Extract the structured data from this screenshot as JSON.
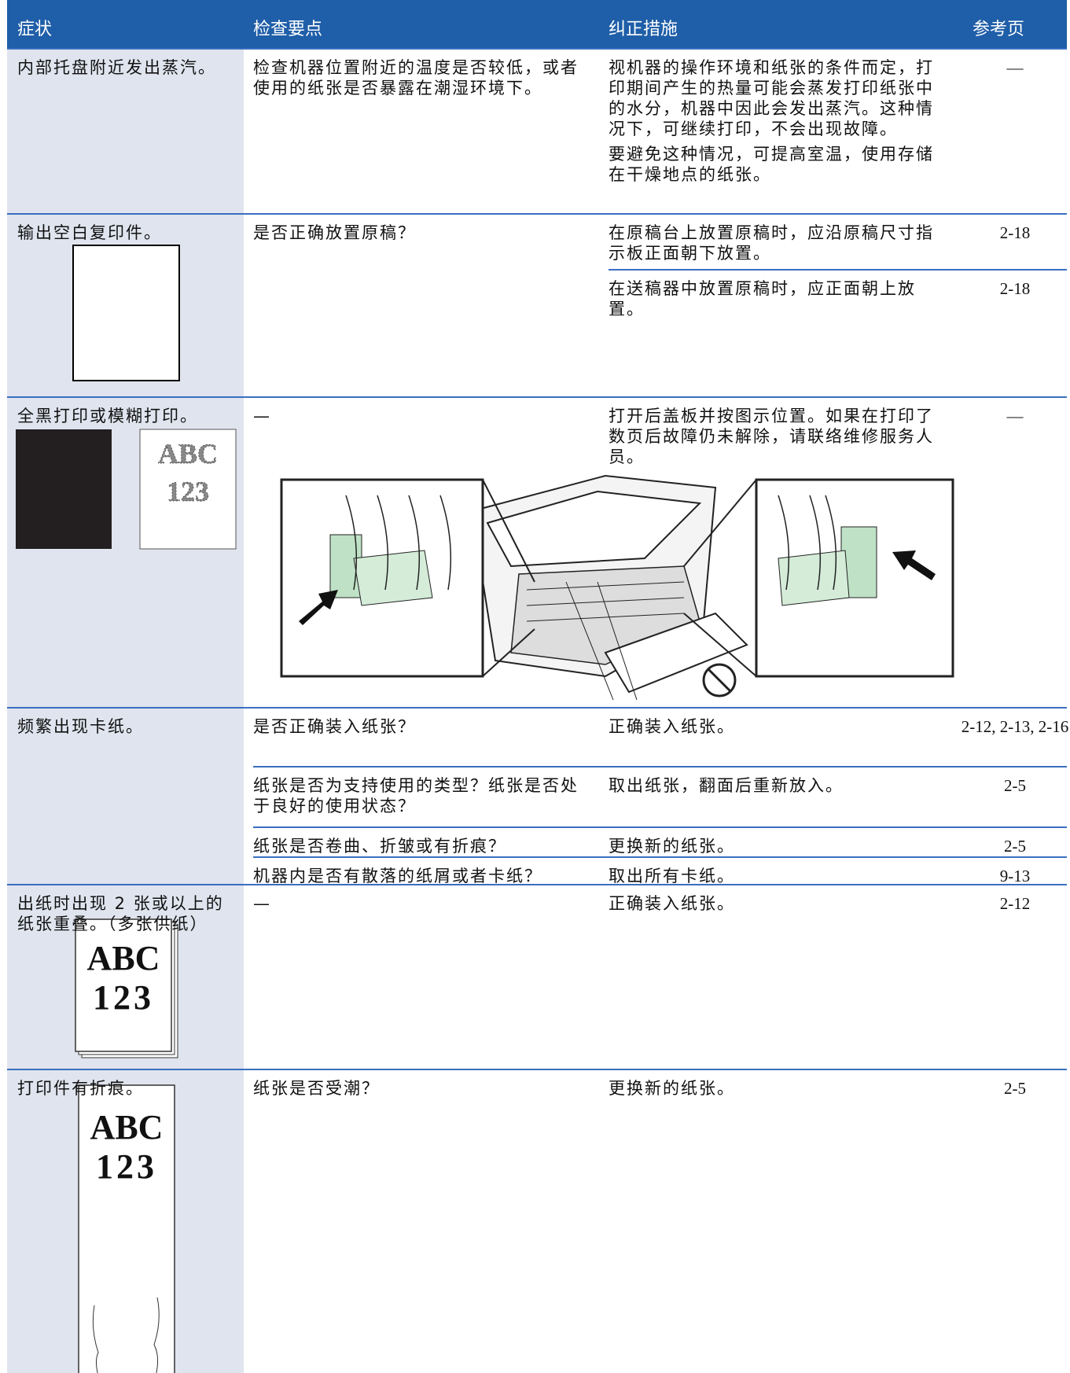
{
  "table": {
    "header": [
      "症状",
      "检查要点",
      "纠正措施",
      "参考页"
    ],
    "rows": [
      {
        "symptom": "内部托盘附近发出蒸汽。",
        "checks": [
          {
            "text": "检查机器位置附近的温度是否较低，或者使用的纸张是否暴露在潮湿环境下。",
            "actions": [
              {
                "paragraphs": [
                  "视机器的操作环境和纸张的条件而定，打印期间产生的热量可能会蒸发打印纸张中的水分，机器中因此会发出蒸汽。这种情况下，可继续打印，不会出现故障。",
                  "要避免这种情况，可提高室温，使用存储在干燥地点的纸张。"
                ],
                "reference": "—"
              }
            ]
          }
        ]
      },
      {
        "symptom": "输出空白复印件。",
        "checks": [
          {
            "text": "是否正确放置原稿？",
            "actions": [
              {
                "paragraphs": [
                  "在原稿台上放置原稿时，应沿原稿尺寸指示板正面朝下放置。"
                ],
                "reference": "2-18"
              },
              {
                "paragraphs": [
                  "在送稿器中放置原稿时，应正面朝上放置。"
                ],
                "reference": "2-18"
              }
            ]
          }
        ]
      },
      {
        "symptom": "全黑打印或模糊打印。",
        "illustration_text": [
          "ABC",
          "123"
        ],
        "checks": [
          {
            "text": "—",
            "actions": [
              {
                "paragraphs": [
                  "打开后盖板并按图示位置。如果在打印了数页后故障仍未解除，请联络维修服务人员。"
                ],
                "reference": "—"
              }
            ]
          }
        ]
      },
      {
        "symptom": "频繁出现卡纸。",
        "checks": [
          {
            "text": "是否正确装入纸张？",
            "actions": [
              {
                "paragraphs": [
                  "正确装入纸张。"
                ],
                "reference": "2-12, 2-13, 2-16"
              }
            ]
          },
          {
            "text": "纸张是否为支持使用的类型？纸张是否处于良好的使用状态？",
            "actions": [
              {
                "paragraphs": [
                  "取出纸张，翻面后重新放入。"
                ],
                "reference": "2-5"
              }
            ]
          },
          {
            "text": "纸张是否卷曲、折皱或有折痕？",
            "actions": [
              {
                "paragraphs": [
                  "更换新的纸张。"
                ],
                "reference": "2-5"
              }
            ]
          },
          {
            "text": "机器内是否有散落的纸屑或者卡纸？",
            "actions": [
              {
                "paragraphs": [
                  "取出所有卡纸。"
                ],
                "reference": "9-13"
              }
            ]
          }
        ]
      },
      {
        "symptom": "出纸时出现 2 张或以上的纸张重叠。（多张供纸）",
        "illustration_text": [
          "ABC",
          "123"
        ],
        "checks": [
          {
            "text": "—",
            "actions": [
              {
                "paragraphs": [
                  "正确装入纸张。"
                ],
                "reference": "2-12"
              }
            ]
          }
        ]
      },
      {
        "symptom": "打印件有折痕。",
        "illustration_text": [
          "ABC",
          "123"
        ],
        "checks": [
          {
            "text": "纸张是否受潮？",
            "actions": [
              {
                "paragraphs": [
                  "更换新的纸张。"
                ],
                "reference": "2-5"
              }
            ]
          }
        ]
      }
    ]
  }
}
